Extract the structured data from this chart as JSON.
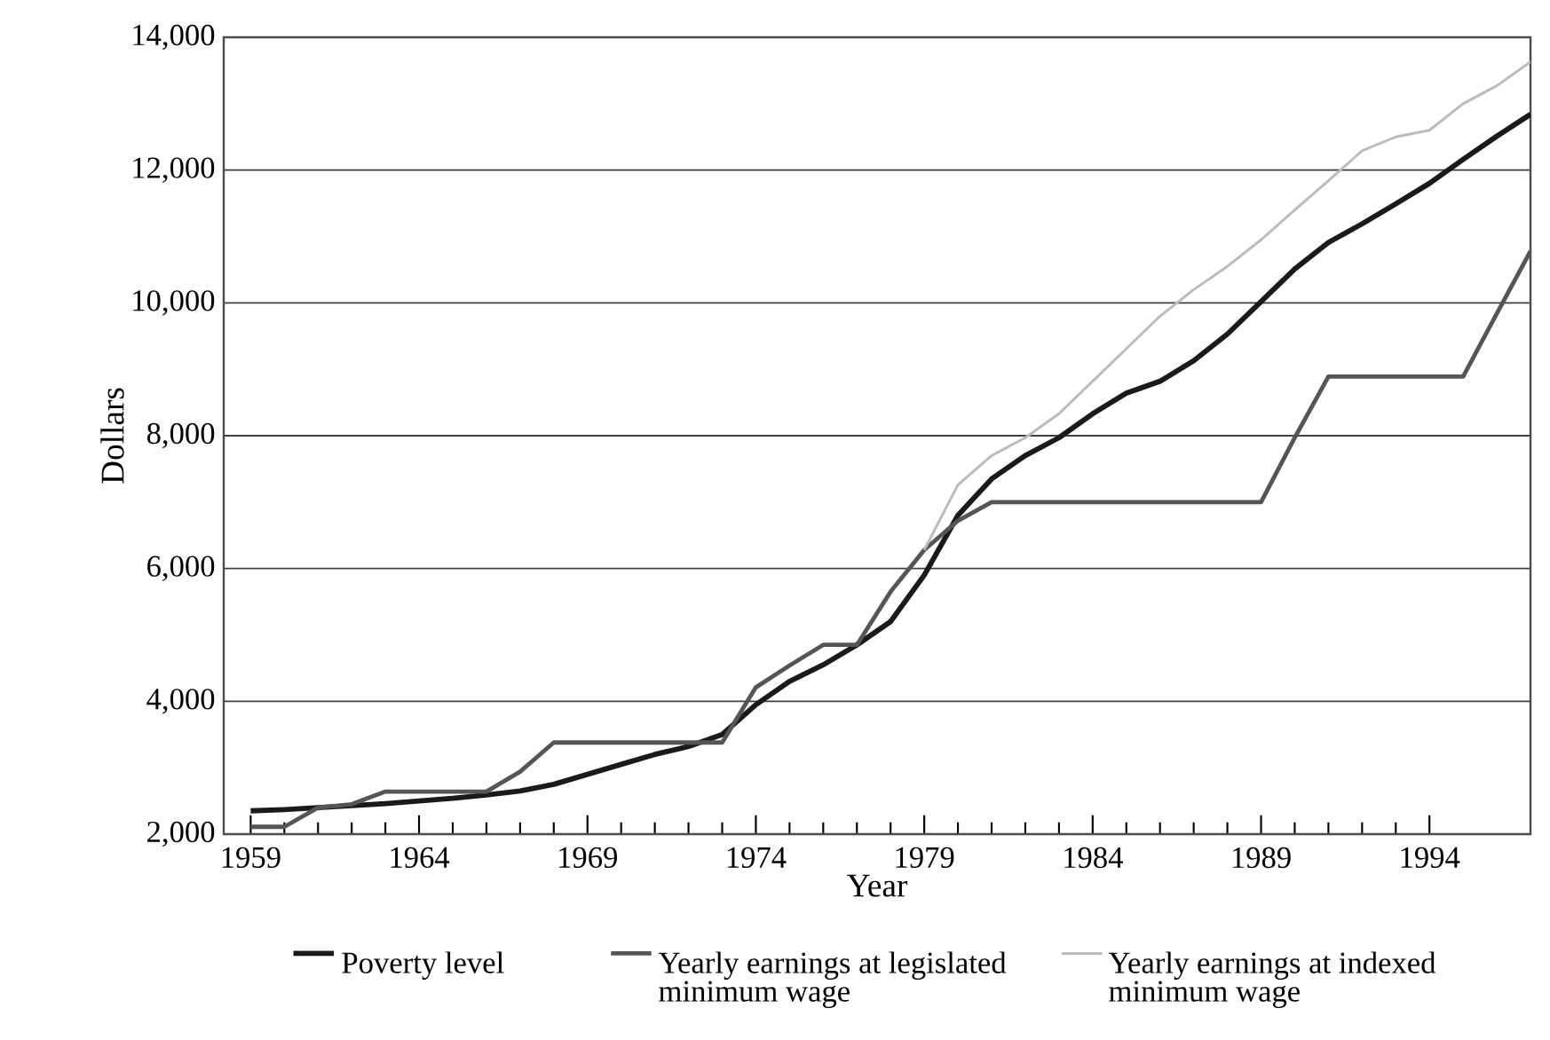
{
  "chart_data": {
    "type": "line",
    "xlabel": "Year",
    "ylabel": "Dollars",
    "x": [
      1959,
      1960,
      1961,
      1962,
      1963,
      1964,
      1965,
      1966,
      1967,
      1968,
      1969,
      1970,
      1971,
      1972,
      1973,
      1974,
      1975,
      1976,
      1977,
      1978,
      1979,
      1980,
      1981,
      1982,
      1983,
      1984,
      1985,
      1986,
      1987,
      1988,
      1989,
      1990,
      1991,
      1992,
      1993,
      1994,
      1995,
      1996,
      1997
    ],
    "series": [
      {
        "name": "Poverty level",
        "color": "#1a1a1a",
        "values": [
          2350,
          2370,
          2400,
          2430,
          2460,
          2500,
          2540,
          2590,
          2650,
          2750,
          2900,
          3050,
          3200,
          3320,
          3500,
          3950,
          4300,
          4550,
          4850,
          5200,
          5900,
          6800,
          7350,
          7700,
          7970,
          8330,
          8640,
          8820,
          9130,
          9530,
          10020,
          10510,
          10910,
          11190,
          11490,
          11800,
          12160,
          12510,
          12840
        ]
      },
      {
        "name": "Yearly earnings at legislated minimum wage",
        "color": "#555555",
        "values": [
          2110,
          2110,
          2400,
          2450,
          2640,
          2640,
          2640,
          2640,
          2940,
          3380,
          3380,
          3380,
          3380,
          3380,
          3380,
          4210,
          4540,
          4850,
          4850,
          5650,
          6280,
          6720,
          7000,
          7000,
          7000,
          7000,
          7000,
          7000,
          7000,
          7000,
          7000,
          7970,
          8890,
          8890,
          8890,
          8890,
          8890,
          9840,
          10780
        ]
      },
      {
        "name": "Yearly earnings at indexed minimum wage",
        "color": "#bbbbbb",
        "x": [
          1979,
          1980,
          1981,
          1982,
          1983,
          1984,
          1985,
          1986,
          1987,
          1988,
          1989,
          1990,
          1991,
          1992,
          1993,
          1994,
          1995,
          1996,
          1997
        ],
        "values": [
          6280,
          7260,
          7700,
          7970,
          8330,
          8820,
          9310,
          9800,
          10200,
          10550,
          10950,
          11400,
          11840,
          12290,
          12500,
          12600,
          13000,
          13270,
          13630
        ]
      }
    ],
    "xlim": [
      1958.2,
      1997
    ],
    "ylim": [
      2000,
      14000
    ],
    "xticks": [
      1959,
      1964,
      1969,
      1974,
      1979,
      1984,
      1989,
      1994
    ],
    "yticks": [
      {
        "value": 2000,
        "label": "2,000"
      },
      {
        "value": 4000,
        "label": "4,000"
      },
      {
        "value": 6000,
        "label": "6,000"
      },
      {
        "value": 8000,
        "label": "8,000"
      },
      {
        "value": 10000,
        "label": "10,000"
      },
      {
        "value": 12000,
        "label": "12,000"
      },
      {
        "value": 14000,
        "label": "14,000"
      }
    ],
    "grid": "y",
    "legend": "bottom"
  }
}
